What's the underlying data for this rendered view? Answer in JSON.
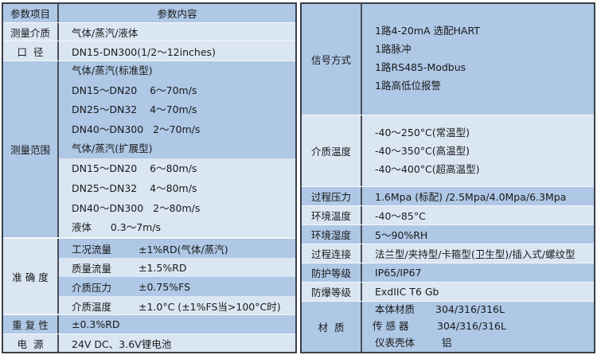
{
  "left": {
    "header": {
      "label": "参数项目",
      "content": "参数内容"
    },
    "medium": {
      "label": "测量介质",
      "value": "气体/蒸汽/液体"
    },
    "diameter": {
      "label": "口  径",
      "value": "DN15-DN300(1/2～12inches)"
    },
    "range": {
      "label": "测量范围",
      "lines": [
        "气体/蒸汽(标准型)",
        "DN15～DN20    6～70m/s",
        "DN25～DN32    4～70m/s",
        "DN40～DN300   2～70m/s",
        "气体/蒸汽(扩展型)",
        "DN15～DN20    6～80m/s",
        "DN25～DN32    4～80m/s",
        "DN40～DN300   2～80m/s",
        "液体      0.3～7m/s"
      ]
    },
    "accuracy": {
      "label": "准 确 度",
      "items": [
        {
          "name": "工况流量",
          "value": "±1%RD(气体/蒸汽)"
        },
        {
          "name": "质量流量",
          "value": "±1.5%RD"
        },
        {
          "name": "介质压力",
          "value": "±0.75%FS"
        },
        {
          "name": "介质温度",
          "value": "±1.0°C (±1%FS当>100°C时)"
        }
      ]
    },
    "repeatability": {
      "label": "重 复 性",
      "value": "±0.3%RD"
    },
    "power": {
      "label": "电  源",
      "value": "24V DC、3.6V锂电池"
    }
  },
  "right": {
    "signal": {
      "label": "信号方式",
      "lines": [
        "1路4-20mA 选配HART",
        "1路脉冲",
        "1路RS485-Modbus",
        "1路高低位报警"
      ]
    },
    "medium_temp": {
      "label": "介质温度",
      "lines": [
        "-40～250°C(常温型)",
        "-40～350°C(高温型)",
        "-40～400°C(超高温型)"
      ]
    },
    "process_pressure": {
      "label": "过程压力",
      "value": "1.6Mpa (标配) /2.5Mpa/4.0Mpa/6.3Mpa"
    },
    "ambient_temp": {
      "label": "环境温度",
      "value": "-40～85°C"
    },
    "ambient_humidity": {
      "label": "环境湿度",
      "value": "5～90%RH"
    },
    "connection": {
      "label": "过程连接",
      "value": "法兰型/夹持型/卡箍型(卫生型)/插入式/螺纹型"
    },
    "protection": {
      "label": "防护等级",
      "value": "IP65/IP67"
    },
    "explosion": {
      "label": "防爆等级",
      "value": "ExdIIC T6 Gb"
    },
    "material": {
      "label": "材  质",
      "items": [
        {
          "name": "本体材质",
          "value": "304/316/316L"
        },
        {
          "name": "传 感 器",
          "value": "304/316/316L"
        },
        {
          "name": "仪表壳体",
          "value": "铝"
        }
      ]
    }
  },
  "colors": {
    "dark_row": "#aec8e6",
    "light_row": "#dbe6f3",
    "border": "#3a3f48"
  }
}
